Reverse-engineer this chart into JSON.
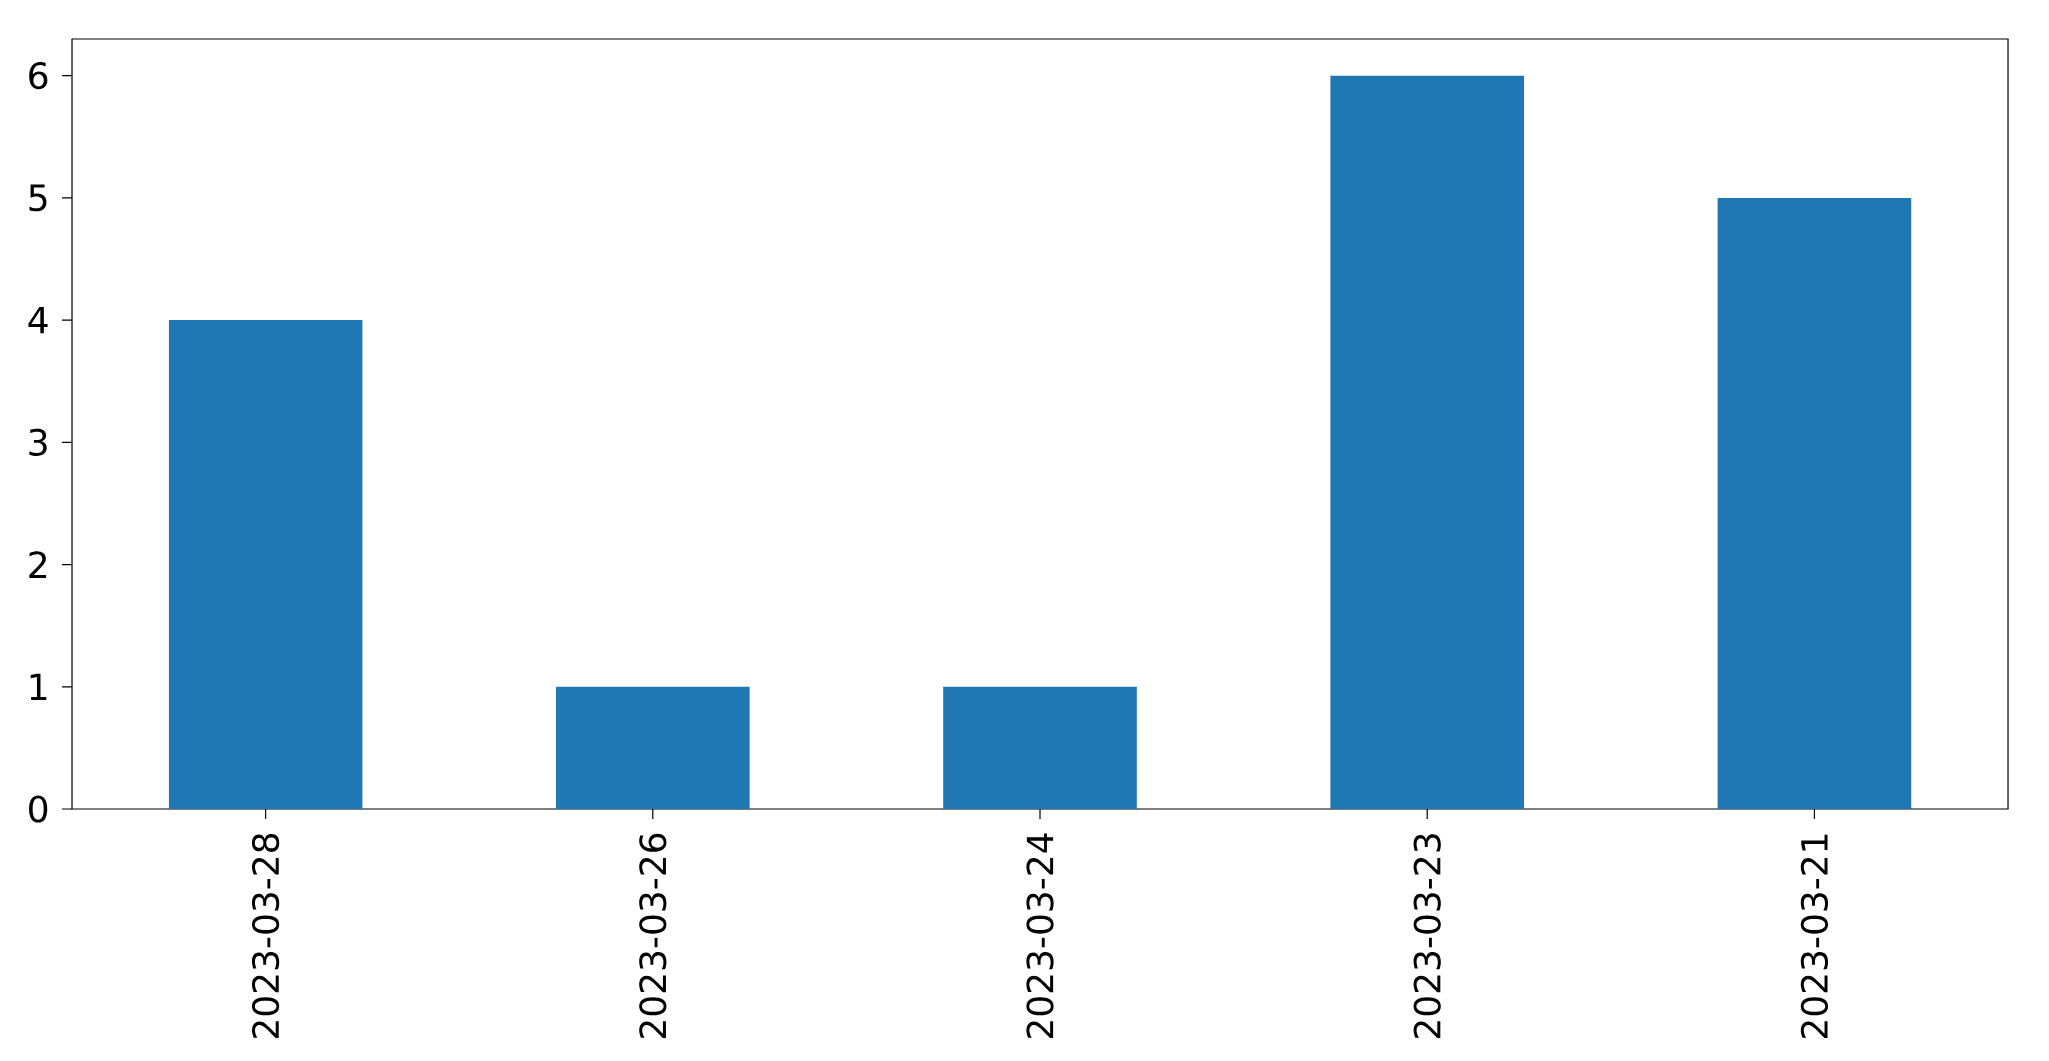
{
  "chart_data": {
    "type": "bar",
    "categories": [
      "2023-03-28",
      "2023-03-26",
      "2023-03-24",
      "2023-03-23",
      "2023-03-21"
    ],
    "values": [
      4,
      1,
      1,
      6,
      5
    ],
    "color": "#1f77b4",
    "ylim": [
      0,
      6.3
    ],
    "yticks": [
      0,
      1,
      2,
      3,
      4,
      5,
      6
    ]
  }
}
